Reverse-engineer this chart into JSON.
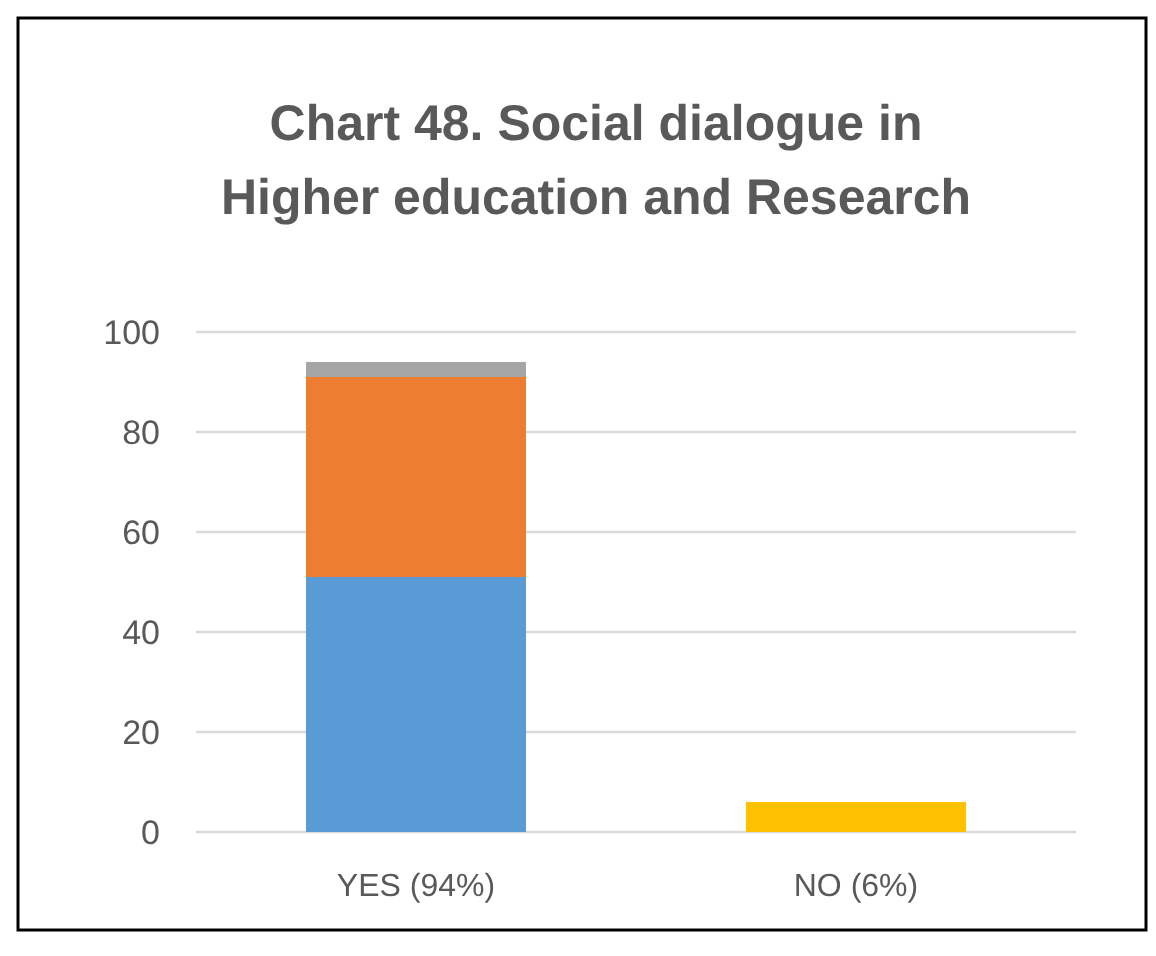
{
  "chart_data": {
    "type": "bar",
    "title": "Chart 48. Social dialogue in Higher education and Research",
    "categories": [
      "YES (94%)",
      "NO (6%)"
    ],
    "stacked": true,
    "series": [
      {
        "color": "#5b9bd5",
        "values": [
          51,
          null
        ]
      },
      {
        "color": "#ed7d31",
        "values": [
          40,
          null
        ]
      },
      {
        "color": "#a5a5a5",
        "values": [
          3,
          null
        ]
      },
      {
        "color": "#ffc000",
        "values": [
          null,
          6
        ]
      }
    ],
    "ylim": [
      0,
      100
    ],
    "yticks": [
      0,
      20,
      40,
      60,
      80,
      100
    ],
    "grid": "y"
  }
}
